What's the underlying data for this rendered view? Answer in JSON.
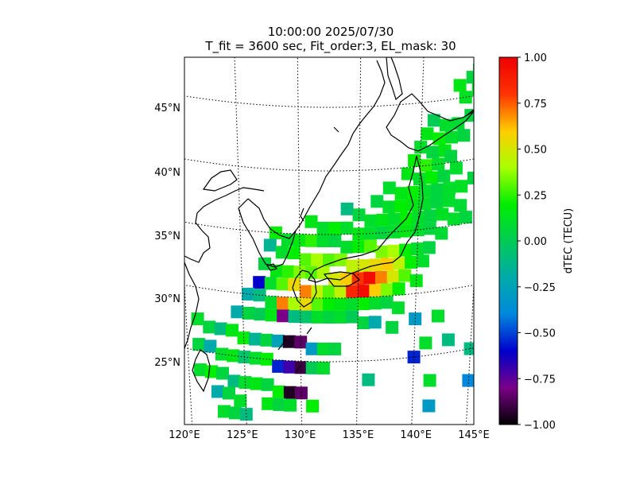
{
  "title": {
    "line1": "10:00:00 2025/07/30",
    "line2": "T_fit = 3600 sec, Fit_order:3, EL_mask: 30"
  },
  "map": {
    "lon_range": [
      120,
      145
    ],
    "lat_range": [
      20,
      49
    ],
    "lon_ticks": [
      {
        "value": 120,
        "label": "120°E"
      },
      {
        "value": 125,
        "label": "125°E"
      },
      {
        "value": 130,
        "label": "130°E"
      },
      {
        "value": 135,
        "label": "135°E"
      },
      {
        "value": 140,
        "label": "140°E"
      },
      {
        "value": 145,
        "label": "145°E"
      }
    ],
    "lat_ticks": [
      {
        "value": 25,
        "label": "25°N"
      },
      {
        "value": 30,
        "label": "30°N"
      },
      {
        "value": 35,
        "label": "35°N"
      },
      {
        "value": 40,
        "label": "40°N"
      },
      {
        "value": 45,
        "label": "45°N"
      }
    ],
    "gridlines": true,
    "coastlines": true
  },
  "colorbar": {
    "label": "dTEC (TECU)",
    "colormap": "nipy_spectral-like",
    "range": [
      -1.0,
      1.0
    ],
    "ticks": [
      {
        "value": 1.0,
        "label": "1.00"
      },
      {
        "value": 0.75,
        "label": "0.75"
      },
      {
        "value": 0.5,
        "label": "0.50"
      },
      {
        "value": 0.25,
        "label": "0.25"
      },
      {
        "value": 0.0,
        "label": "0.00"
      },
      {
        "value": -0.25,
        "label": "−0.25"
      },
      {
        "value": -0.5,
        "label": "−0.50"
      },
      {
        "value": -0.75,
        "label": "−0.75"
      },
      {
        "value": -1.0,
        "label": "−1.00"
      }
    ]
  },
  "chart_data": {
    "type": "heatmap",
    "x": "longitude",
    "y": "latitude",
    "value": "dTEC",
    "note_values": "TECU",
    "points": [
      [
        144.5,
        47.0,
        0.1
      ],
      [
        144.0,
        46.5,
        0.05
      ],
      [
        143.0,
        46.0,
        0.15
      ],
      [
        144.5,
        45.5,
        0.1
      ],
      [
        143.5,
        45.0,
        0.12
      ],
      [
        141.0,
        43.5,
        0.0
      ],
      [
        142.0,
        43.0,
        0.1
      ],
      [
        143.0,
        43.0,
        0.08
      ],
      [
        144.0,
        43.5,
        0.05
      ],
      [
        140.5,
        42.5,
        0.15
      ],
      [
        141.5,
        42.0,
        0.2
      ],
      [
        142.5,
        42.0,
        0.1
      ],
      [
        143.5,
        42.0,
        0.05
      ],
      [
        140.0,
        41.5,
        0.1
      ],
      [
        141.0,
        41.0,
        0.05
      ],
      [
        142.0,
        41.0,
        0.15
      ],
      [
        139.5,
        40.5,
        0.2
      ],
      [
        140.5,
        40.0,
        0.25
      ],
      [
        141.5,
        40.0,
        0.1
      ],
      [
        142.5,
        40.5,
        0.05
      ],
      [
        139.0,
        39.5,
        0.15
      ],
      [
        140.0,
        39.0,
        0.1
      ],
      [
        141.0,
        39.0,
        0.2
      ],
      [
        142.0,
        39.0,
        0.05
      ],
      [
        143.0,
        39.5,
        0.1
      ],
      [
        137.5,
        38.5,
        0.1
      ],
      [
        138.5,
        38.0,
        0.15
      ],
      [
        139.5,
        38.0,
        0.2
      ],
      [
        140.5,
        38.0,
        0.1
      ],
      [
        141.5,
        38.0,
        0.05
      ],
      [
        142.5,
        38.0,
        0.1
      ],
      [
        143.5,
        38.0,
        0.12
      ],
      [
        144.5,
        38.5,
        0.05
      ],
      [
        136.5,
        37.5,
        0.05
      ],
      [
        137.5,
        37.0,
        0.1
      ],
      [
        138.5,
        37.0,
        0.2
      ],
      [
        139.5,
        37.0,
        0.15
      ],
      [
        140.5,
        37.0,
        0.1
      ],
      [
        141.5,
        37.0,
        0.05
      ],
      [
        142.5,
        37.0,
        0.1
      ],
      [
        143.5,
        36.5,
        0.08
      ],
      [
        134.0,
        37.0,
        -0.1
      ],
      [
        135.0,
        36.5,
        0.05
      ],
      [
        136.0,
        36.0,
        0.1
      ],
      [
        137.0,
        36.0,
        0.15
      ],
      [
        138.0,
        36.0,
        0.1
      ],
      [
        139.0,
        36.0,
        0.2
      ],
      [
        140.0,
        36.0,
        0.1
      ],
      [
        141.0,
        36.0,
        0.05
      ],
      [
        142.0,
        36.0,
        0.12
      ],
      [
        143.0,
        35.5,
        0.1
      ],
      [
        144.0,
        35.5,
        0.05
      ],
      [
        131.0,
        36.0,
        0.15
      ],
      [
        132.0,
        35.5,
        0.1
      ],
      [
        133.0,
        35.5,
        0.2
      ],
      [
        134.0,
        35.5,
        0.1
      ],
      [
        135.0,
        35.0,
        0.15
      ],
      [
        136.0,
        35.0,
        0.1
      ],
      [
        137.0,
        35.0,
        0.05
      ],
      [
        138.0,
        35.0,
        0.1
      ],
      [
        139.0,
        35.0,
        0.15
      ],
      [
        140.0,
        35.0,
        0.1
      ],
      [
        141.0,
        35.0,
        0.05
      ],
      [
        142.0,
        34.5,
        0.08
      ],
      [
        128.0,
        35.0,
        0.2
      ],
      [
        129.0,
        34.5,
        0.1
      ],
      [
        130.0,
        34.5,
        0.15
      ],
      [
        131.0,
        34.5,
        0.25
      ],
      [
        132.0,
        34.5,
        0.1
      ],
      [
        133.0,
        34.5,
        0.05
      ],
      [
        134.0,
        34.0,
        0.1
      ],
      [
        135.0,
        34.0,
        0.2
      ],
      [
        136.0,
        34.0,
        0.3
      ],
      [
        137.0,
        33.5,
        0.35
      ],
      [
        138.0,
        33.5,
        0.4
      ],
      [
        139.0,
        33.5,
        0.2
      ],
      [
        140.0,
        33.5,
        0.1
      ],
      [
        141.0,
        33.5,
        0.05
      ],
      [
        127.5,
        34.0,
        -0.15
      ],
      [
        128.5,
        33.5,
        0.1
      ],
      [
        129.5,
        33.5,
        0.2
      ],
      [
        130.5,
        33.0,
        0.3
      ],
      [
        131.5,
        33.0,
        0.4
      ],
      [
        132.5,
        33.0,
        0.3
      ],
      [
        133.5,
        33.0,
        0.35
      ],
      [
        134.5,
        32.5,
        0.45
      ],
      [
        135.5,
        32.5,
        0.5
      ],
      [
        136.5,
        32.5,
        0.55
      ],
      [
        137.5,
        32.5,
        0.6
      ],
      [
        138.5,
        32.5,
        0.45
      ],
      [
        139.5,
        32.5,
        0.2
      ],
      [
        140.5,
        32.5,
        0.1
      ],
      [
        127.0,
        32.5,
        0.05
      ],
      [
        128.0,
        32.0,
        0.15
      ],
      [
        129.0,
        32.0,
        0.25
      ],
      [
        130.0,
        32.0,
        0.35
      ],
      [
        131.0,
        32.0,
        0.3
      ],
      [
        132.0,
        32.0,
        0.4
      ],
      [
        133.0,
        31.5,
        0.5
      ],
      [
        134.0,
        31.5,
        0.6
      ],
      [
        135.0,
        31.5,
        0.8
      ],
      [
        136.0,
        31.5,
        0.95
      ],
      [
        137.0,
        31.5,
        0.7
      ],
      [
        138.0,
        31.5,
        0.5
      ],
      [
        139.0,
        31.5,
        0.3
      ],
      [
        140.0,
        31.0,
        0.15
      ],
      [
        126.5,
        31.0,
        -0.6
      ],
      [
        127.5,
        31.0,
        0.1
      ],
      [
        128.5,
        31.0,
        0.3
      ],
      [
        129.5,
        31.0,
        0.55
      ],
      [
        130.5,
        30.5,
        0.7
      ],
      [
        131.5,
        30.5,
        0.45
      ],
      [
        132.5,
        30.5,
        0.3
      ],
      [
        133.5,
        30.5,
        0.45
      ],
      [
        134.5,
        30.5,
        0.85
      ],
      [
        135.5,
        30.5,
        0.95
      ],
      [
        136.5,
        30.5,
        0.6
      ],
      [
        137.5,
        30.5,
        0.35
      ],
      [
        138.5,
        30.5,
        0.2
      ],
      [
        125.5,
        30.0,
        -0.2
      ],
      [
        126.5,
        30.0,
        -0.1
      ],
      [
        127.5,
        29.5,
        0.1
      ],
      [
        128.5,
        29.5,
        0.7
      ],
      [
        129.5,
        29.5,
        0.4
      ],
      [
        130.5,
        29.5,
        0.55
      ],
      [
        131.5,
        29.5,
        0.3
      ],
      [
        132.5,
        29.5,
        0.2
      ],
      [
        133.5,
        29.5,
        0.15
      ],
      [
        134.5,
        29.5,
        0.1
      ],
      [
        135.5,
        29.5,
        0.2
      ],
      [
        136.5,
        29.5,
        0.1
      ],
      [
        137.5,
        29.5,
        0.05
      ],
      [
        138.5,
        29.0,
        0.1
      ],
      [
        124.5,
        28.5,
        -0.2
      ],
      [
        125.5,
        28.5,
        0.05
      ],
      [
        126.5,
        28.5,
        0.0
      ],
      [
        127.5,
        28.5,
        0.15
      ],
      [
        128.5,
        28.5,
        -0.8
      ],
      [
        129.5,
        28.5,
        -0.1
      ],
      [
        130.5,
        28.5,
        -0.05
      ],
      [
        131.5,
        28.5,
        0.1
      ],
      [
        132.5,
        28.5,
        0.05
      ],
      [
        133.5,
        28.5,
        0.1
      ],
      [
        134.5,
        28.5,
        0.0
      ],
      [
        135.5,
        28.0,
        0.05
      ],
      [
        136.5,
        28.0,
        -0.2
      ],
      [
        138.0,
        27.5,
        0.05
      ],
      [
        140.0,
        28.0,
        -0.3
      ],
      [
        142.0,
        28.0,
        0.1
      ],
      [
        121.0,
        27.5,
        0.1
      ],
      [
        122.0,
        27.0,
        0.05
      ],
      [
        123.0,
        27.0,
        -0.1
      ],
      [
        124.0,
        27.0,
        0.15
      ],
      [
        125.0,
        26.5,
        0.2
      ],
      [
        126.0,
        26.5,
        -0.15
      ],
      [
        127.0,
        26.5,
        0.05
      ],
      [
        128.0,
        26.5,
        -0.25
      ],
      [
        129.0,
        26.5,
        -0.95
      ],
      [
        130.0,
        26.5,
        -0.85
      ],
      [
        131.0,
        26.0,
        -0.3
      ],
      [
        132.0,
        26.0,
        0.1
      ],
      [
        133.0,
        26.0,
        0.05
      ],
      [
        141.0,
        26.0,
        0.1
      ],
      [
        143.0,
        26.0,
        -0.1
      ],
      [
        121.0,
        25.5,
        0.05
      ],
      [
        122.0,
        25.5,
        -0.2
      ],
      [
        123.0,
        25.0,
        0.1
      ],
      [
        124.0,
        25.0,
        0.15
      ],
      [
        125.0,
        25.0,
        -0.05
      ],
      [
        126.0,
        25.0,
        0.1
      ],
      [
        127.0,
        25.0,
        0.2
      ],
      [
        128.0,
        24.5,
        -0.55
      ],
      [
        129.0,
        24.5,
        -0.7
      ],
      [
        130.0,
        24.5,
        -0.9
      ],
      [
        131.0,
        24.5,
        0.0
      ],
      [
        132.0,
        24.5,
        0.1
      ],
      [
        140.0,
        25.0,
        -0.55
      ],
      [
        145.0,
        25.0,
        -0.1
      ],
      [
        121.0,
        23.5,
        0.1
      ],
      [
        122.0,
        23.5,
        0.2
      ],
      [
        123.0,
        23.5,
        0.05
      ],
      [
        124.0,
        23.0,
        -0.1
      ],
      [
        125.0,
        23.0,
        0.1
      ],
      [
        126.0,
        23.0,
        0.15
      ],
      [
        127.0,
        23.0,
        0.05
      ],
      [
        128.0,
        22.5,
        0.2
      ],
      [
        129.0,
        22.5,
        -0.95
      ],
      [
        130.0,
        22.5,
        -0.85
      ],
      [
        136.0,
        23.5,
        -0.1
      ],
      [
        141.5,
        23.0,
        0.1
      ],
      [
        145.0,
        22.5,
        -0.4
      ],
      [
        122.5,
        22.0,
        -0.2
      ],
      [
        123.5,
        22.0,
        0.05
      ],
      [
        124.5,
        21.5,
        0.1
      ],
      [
        127.0,
        21.5,
        0.15
      ],
      [
        128.0,
        21.5,
        0.05
      ],
      [
        129.0,
        21.5,
        0.1
      ],
      [
        131.0,
        21.5,
        0.2
      ],
      [
        141.5,
        21.0,
        -0.3
      ],
      [
        123.0,
        20.5,
        0.1
      ],
      [
        124.0,
        20.5,
        0.05
      ],
      [
        125.0,
        20.5,
        -0.1
      ]
    ]
  }
}
